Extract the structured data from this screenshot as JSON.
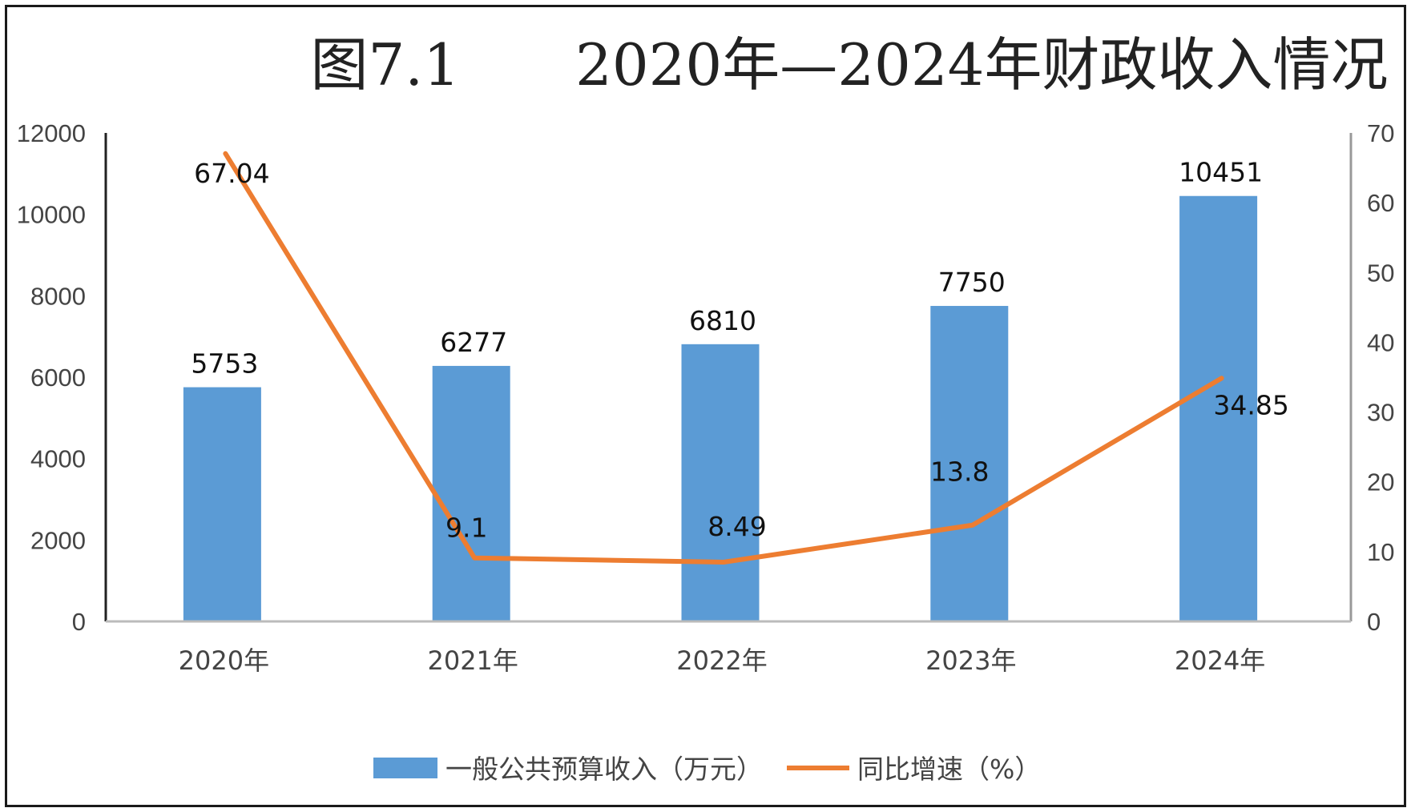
{
  "chart_data": {
    "type": "bar",
    "title": "图7.1　　2020年—2024年财政收入情况",
    "categories": [
      "2020年",
      "2021年",
      "2022年",
      "2023年",
      "2024年"
    ],
    "series": [
      {
        "name": "一般公共预算收入（万元）",
        "type": "bar",
        "axis": "left",
        "color": "#5B9BD5",
        "values": [
          5753,
          6277,
          6810,
          7750,
          10451
        ],
        "labels": [
          "5753",
          "6277",
          "6810",
          "7750",
          "10451"
        ]
      },
      {
        "name": "同比增速（%）",
        "type": "line",
        "axis": "right",
        "color": "#ED7D31",
        "values": [
          67.04,
          9.1,
          8.49,
          13.8,
          34.85
        ],
        "labels": [
          "67.04",
          "9.1",
          "8.49",
          "13.8",
          "34.85"
        ]
      }
    ],
    "y_left": {
      "min": 0,
      "max": 12000,
      "ticks": [
        "0",
        "2000",
        "4000",
        "6000",
        "8000",
        "10000",
        "12000"
      ]
    },
    "y_right": {
      "min": 0,
      "max": 70,
      "ticks": [
        "0",
        "10",
        "20",
        "30",
        "40",
        "50",
        "60",
        "70"
      ]
    },
    "grid": false,
    "legend": "bottom"
  }
}
